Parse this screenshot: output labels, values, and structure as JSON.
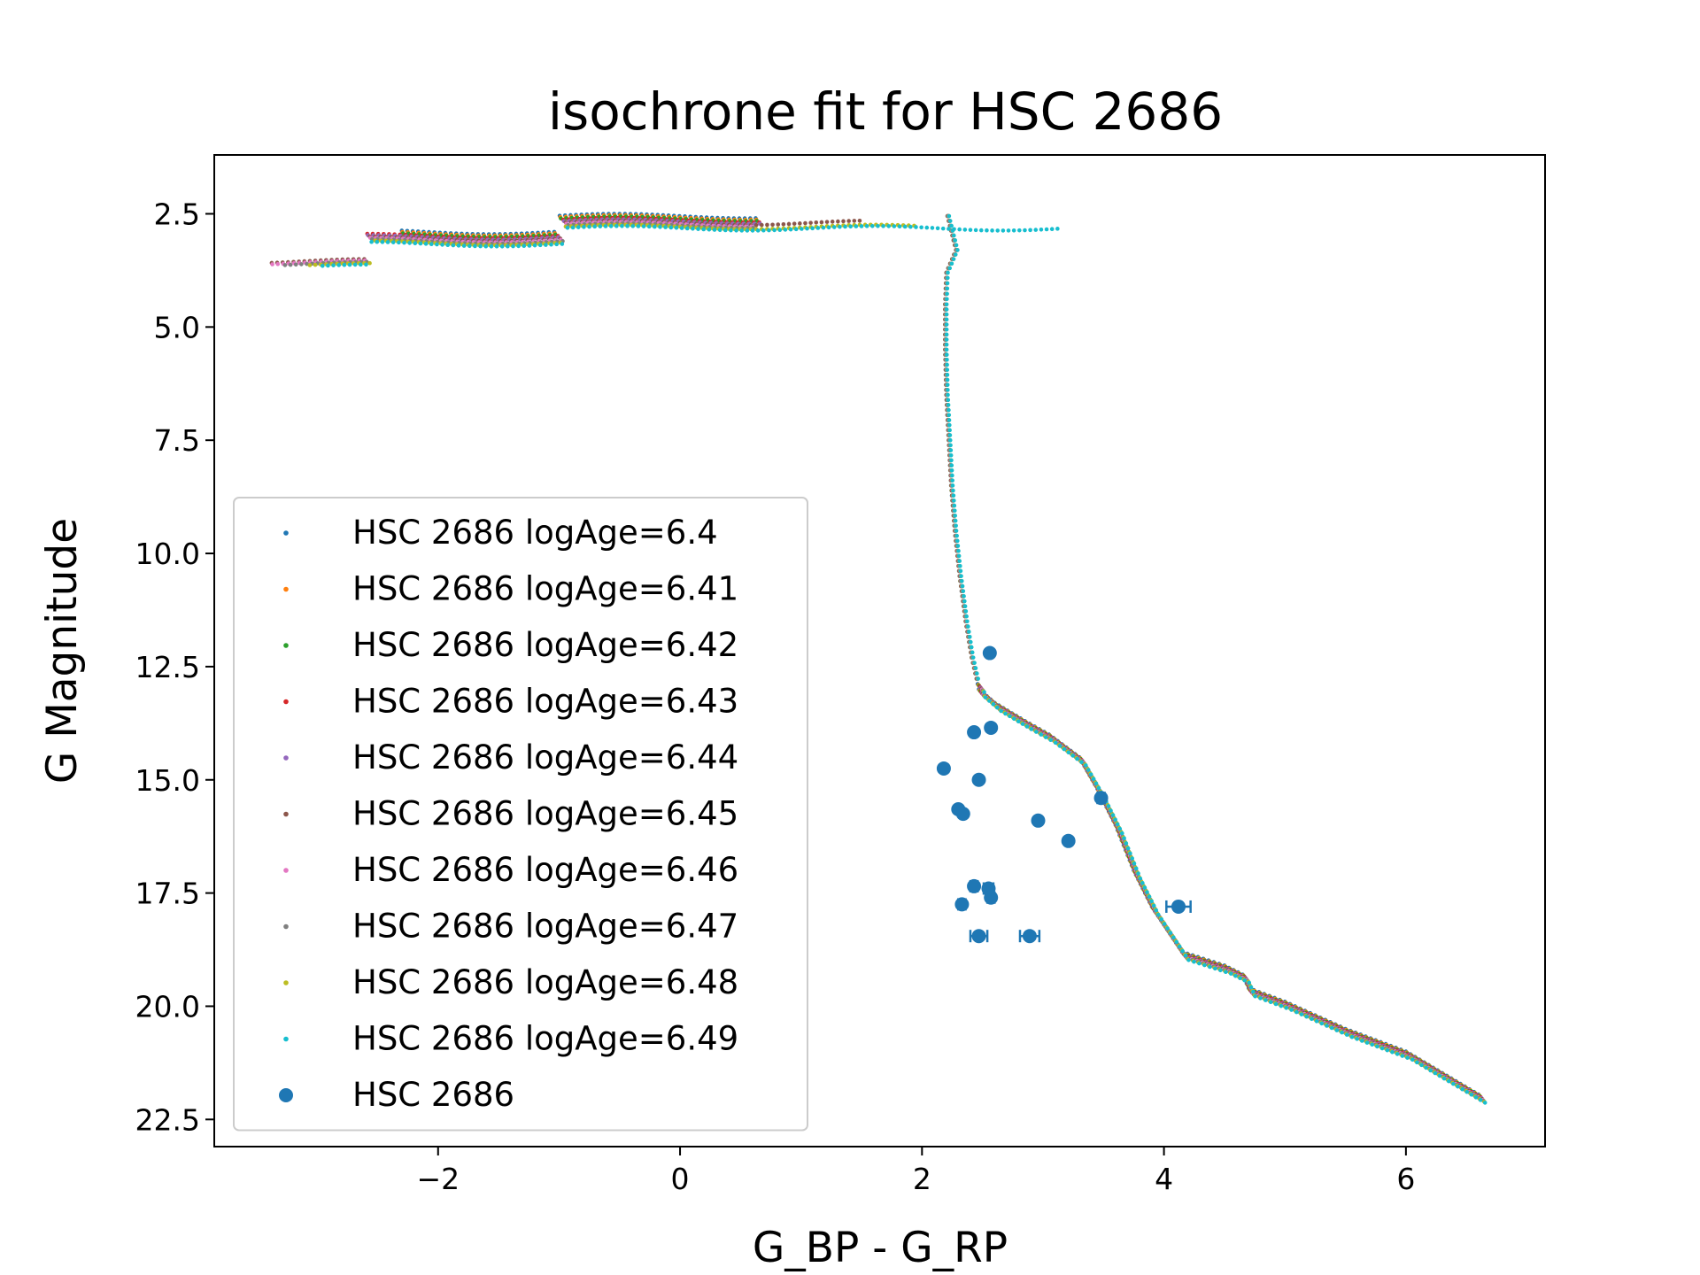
{
  "chart_data": {
    "type": "scatter",
    "title": "isochrone fit for HSC 2686",
    "xlabel": "G_BP - G_RP",
    "ylabel": "G Magnitude",
    "xlim": [
      -3.85,
      7.15
    ],
    "ylim": [
      23.1,
      1.2
    ],
    "y_inverted": true,
    "x_ticks": [
      -2,
      0,
      2,
      4,
      6
    ],
    "x_tick_labels": [
      "−2",
      "0",
      "2",
      "4",
      "6"
    ],
    "y_ticks": [
      2.5,
      5.0,
      7.5,
      10.0,
      12.5,
      15.0,
      17.5,
      20.0,
      22.5
    ],
    "y_tick_labels": [
      "2.5",
      "5.0",
      "7.5",
      "10.0",
      "12.5",
      "15.0",
      "17.5",
      "20.0",
      "22.5"
    ],
    "grid": false,
    "legend_position": "lower-left",
    "series": [
      {
        "name": "HSC 2686 logAge=6.4",
        "color": "#1f77b4",
        "marker": "point",
        "x_offset": 0.0,
        "bright_left": -2.3,
        "bright_right": 0.65
      },
      {
        "name": "HSC 2686 logAge=6.41",
        "color": "#ff7f0e",
        "marker": "point",
        "x_offset": 0.01,
        "bright_left": -2.3,
        "bright_right": 0.65
      },
      {
        "name": "HSC 2686 logAge=6.42",
        "color": "#2ca02c",
        "marker": "point",
        "x_offset": 0.02,
        "bright_left": -2.3,
        "bright_right": 0.65
      },
      {
        "name": "HSC 2686 logAge=6.43",
        "color": "#d62728",
        "marker": "point",
        "x_offset": 0.03,
        "bright_left": -2.6,
        "bright_right": 0.65
      },
      {
        "name": "HSC 2686 logAge=6.44",
        "color": "#9467bd",
        "marker": "point",
        "x_offset": 0.04,
        "bright_left": -2.6,
        "bright_right": 0.65
      },
      {
        "name": "HSC 2686 logAge=6.45",
        "color": "#8c564b",
        "marker": "point",
        "x_offset": 0.05,
        "bright_left": -3.4,
        "bright_right": 1.5
      },
      {
        "name": "HSC 2686 logAge=6.46",
        "color": "#e377c2",
        "marker": "point",
        "x_offset": 0.06,
        "bright_left": -3.4,
        "bright_right": 0.6
      },
      {
        "name": "HSC 2686 logAge=6.47",
        "color": "#7f7f7f",
        "marker": "point",
        "x_offset": 0.07,
        "bright_left": -3.3,
        "bright_right": 0.6
      },
      {
        "name": "HSC 2686 logAge=6.48",
        "color": "#bcbd22",
        "marker": "point",
        "x_offset": 0.08,
        "bright_left": -3.1,
        "bright_right": 1.9
      },
      {
        "name": "HSC 2686 logAge=6.49",
        "color": "#17becf",
        "marker": "point",
        "x_offset": 0.09,
        "bright_left": -3.0,
        "bright_right": 3.1
      }
    ],
    "isochrone_track": [
      {
        "x": 2.21,
        "y": 2.55
      },
      {
        "x": 2.28,
        "y": 3.3
      },
      {
        "x": 2.2,
        "y": 3.8
      },
      {
        "x": 2.19,
        "y": 4.5
      },
      {
        "x": 2.19,
        "y": 5.5
      },
      {
        "x": 2.2,
        "y": 6.5
      },
      {
        "x": 2.22,
        "y": 7.5
      },
      {
        "x": 2.24,
        "y": 8.5
      },
      {
        "x": 2.27,
        "y": 9.5
      },
      {
        "x": 2.31,
        "y": 10.5
      },
      {
        "x": 2.36,
        "y": 11.5
      },
      {
        "x": 2.41,
        "y": 12.3
      },
      {
        "x": 2.47,
        "y": 13.0
      },
      {
        "x": 2.6,
        "y": 13.3
      },
      {
        "x": 2.85,
        "y": 13.7
      },
      {
        "x": 3.05,
        "y": 14.0
      },
      {
        "x": 3.3,
        "y": 14.5
      },
      {
        "x": 3.45,
        "y": 15.2
      },
      {
        "x": 3.6,
        "y": 16.0
      },
      {
        "x": 3.75,
        "y": 17.0
      },
      {
        "x": 3.9,
        "y": 17.8
      },
      {
        "x": 4.15,
        "y": 18.8
      },
      {
        "x": 4.5,
        "y": 19.1
      },
      {
        "x": 4.65,
        "y": 19.3
      },
      {
        "x": 4.7,
        "y": 19.6
      },
      {
        "x": 5.0,
        "y": 19.9
      },
      {
        "x": 5.5,
        "y": 20.5
      },
      {
        "x": 6.0,
        "y": 21.0
      },
      {
        "x": 6.6,
        "y": 21.95
      }
    ],
    "observed": {
      "name": "HSC 2686",
      "color": "#1f77b4",
      "points": [
        {
          "x": 2.56,
          "y": 12.2,
          "xerr": 0.02
        },
        {
          "x": 2.43,
          "y": 13.95,
          "xerr": 0.02
        },
        {
          "x": 2.57,
          "y": 13.85,
          "xerr": 0.02
        },
        {
          "x": 2.18,
          "y": 14.75,
          "xerr": 0.02
        },
        {
          "x": 2.47,
          "y": 15.0,
          "xerr": 0.02
        },
        {
          "x": 2.3,
          "y": 15.65,
          "xerr": 0.02
        },
        {
          "x": 2.34,
          "y": 15.75,
          "xerr": 0.02
        },
        {
          "x": 2.96,
          "y": 15.9,
          "xerr": 0.02
        },
        {
          "x": 3.48,
          "y": 15.4,
          "xerr": 0.03
        },
        {
          "x": 3.21,
          "y": 16.35,
          "xerr": 0.02
        },
        {
          "x": 2.43,
          "y": 17.35,
          "xerr": 0.03
        },
        {
          "x": 2.55,
          "y": 17.4,
          "xerr": 0.04
        },
        {
          "x": 2.57,
          "y": 17.6,
          "xerr": 0.03
        },
        {
          "x": 2.33,
          "y": 17.75,
          "xerr": 0.03
        },
        {
          "x": 4.12,
          "y": 17.8,
          "xerr": 0.1
        },
        {
          "x": 2.47,
          "y": 18.45,
          "xerr": 0.07
        },
        {
          "x": 2.89,
          "y": 18.45,
          "xerr": 0.08
        }
      ]
    }
  }
}
